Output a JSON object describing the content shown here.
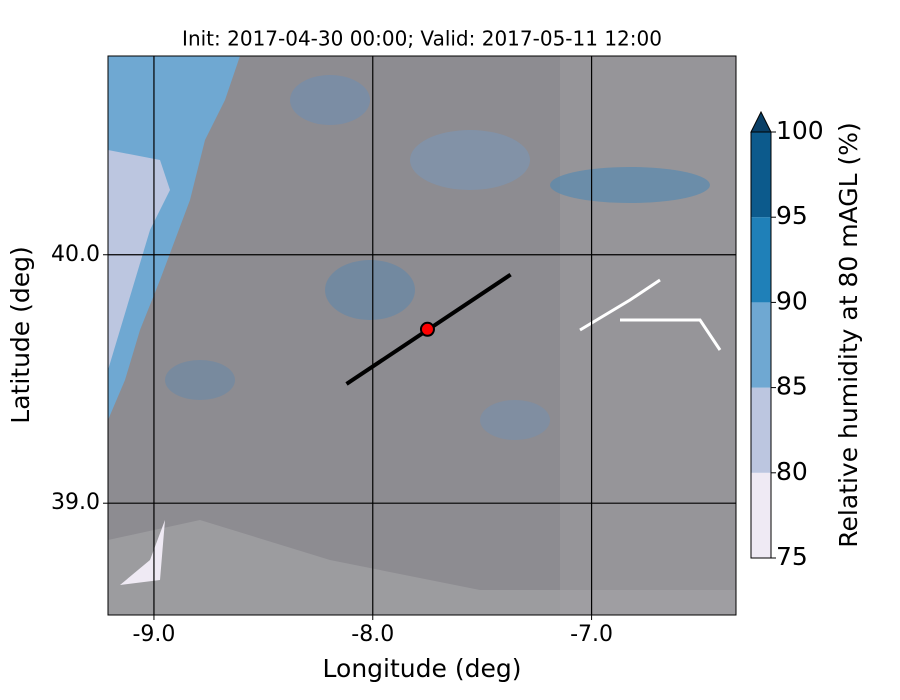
{
  "chart_data": {
    "type": "map",
    "title": "Init: 2017-04-30 00:00; Valid: 2017-05-11 12:00",
    "x_label": "Longitude (deg)",
    "y_label": "Latitude (deg)",
    "xlim": [
      -9.21,
      -6.34
    ],
    "ylim": [
      38.55,
      40.8
    ],
    "xticks": [
      {
        "value": -9,
        "label": "-9.0"
      },
      {
        "value": -8,
        "label": "-8.0"
      },
      {
        "value": -7,
        "label": "-7.0"
      }
    ],
    "yticks": [
      {
        "value": 39,
        "label": "39.0"
      },
      {
        "value": 40,
        "label": "40.0"
      }
    ],
    "grid": true,
    "track": {
      "lon": [
        -8.12,
        -7.37
      ],
      "lat": [
        39.48,
        39.92
      ],
      "color": "#000000"
    },
    "point": {
      "lon": -7.75,
      "lat": 39.7,
      "color": "#ff0000"
    },
    "colorbar": {
      "label": "Relative humidity at 80 mAGL (%)",
      "lim": [
        75,
        100
      ],
      "ticks": [
        75,
        80,
        85,
        90,
        95,
        100
      ],
      "colors": [
        "#efeaf4",
        "#bcc6e0",
        "#6fa8d2",
        "#1f80b8",
        "#0c5a8c"
      ],
      "extend": "max",
      "over_color": "#0a3f66"
    }
  }
}
